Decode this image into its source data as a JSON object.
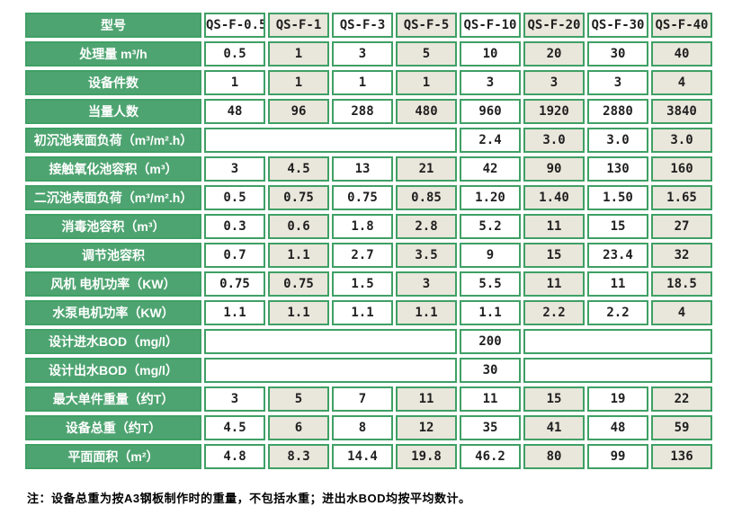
{
  "table": {
    "header": {
      "label": "型号",
      "models": [
        "QS-F-0.5",
        "QS-F-1",
        "QS-F-3",
        "QS-F-5",
        "QS-F-10",
        "QS-F-20",
        "QS-F-30",
        "QS-F-40"
      ]
    },
    "rows": [
      {
        "label": "处理量 m³/h",
        "cells": [
          "0.5",
          "1",
          "3",
          "5",
          "10",
          "20",
          "30",
          "40"
        ]
      },
      {
        "label": "设备件数",
        "cells": [
          "1",
          "1",
          "1",
          "1",
          "3",
          "3",
          "3",
          "4"
        ]
      },
      {
        "label": "当量人数",
        "cells": [
          "48",
          "96",
          "288",
          "480",
          "960",
          "1920",
          "2880",
          "3840"
        ]
      },
      {
        "label": "初沉池表面负荷（m³/m².h）",
        "cells": [
          {
            "text": "",
            "span": 4
          },
          {
            "text": "2.4"
          },
          {
            "text": "3.0"
          },
          {
            "text": "3.0"
          },
          {
            "text": "3.0"
          }
        ]
      },
      {
        "label": "接触氧化池容积（m³）",
        "cells": [
          "3",
          "4.5",
          "13",
          "21",
          "42",
          "90",
          "130",
          "160"
        ]
      },
      {
        "label": "二沉池表面负荷（m³/m².h）",
        "cells": [
          "0.5",
          "0.75",
          "0.75",
          "0.85",
          "1.20",
          "1.40",
          "1.50",
          "1.65"
        ]
      },
      {
        "label": "消毒池容积（m³）",
        "cells": [
          "0.3",
          "0.6",
          "1.8",
          "2.8",
          "5.2",
          "11",
          "15",
          "27"
        ]
      },
      {
        "label": "调节池容积",
        "cells": [
          "0.7",
          "1.1",
          "2.7",
          "3.5",
          "9",
          "15",
          "23.4",
          "32"
        ]
      },
      {
        "label": "风机 电机功率（KW）",
        "cells": [
          "0.75",
          "0.75",
          "1.5",
          "3",
          "5.5",
          "11",
          "11",
          "18.5"
        ]
      },
      {
        "label": "水泵电机功率（KW）",
        "cells": [
          "1.1",
          "1.1",
          "1.1",
          "1.1",
          "1.1",
          "2.2",
          "2.2",
          "4"
        ]
      },
      {
        "label": "设计进水BOD（mg/l）",
        "cells": [
          {
            "text": "",
            "span": 4
          },
          {
            "text": "200"
          },
          {
            "text": "",
            "span": 3
          }
        ]
      },
      {
        "label": "设计出水BOD（mg/l）",
        "cells": [
          {
            "text": "",
            "span": 4
          },
          {
            "text": "30"
          },
          {
            "text": "",
            "span": 3
          }
        ]
      },
      {
        "label": "最大单件重量（约T）",
        "cells": [
          "3",
          "5",
          "7",
          "11",
          "11",
          "15",
          "19",
          "22"
        ]
      },
      {
        "label": "设备总重（约T）",
        "cells": [
          "4.5",
          "6",
          "8",
          "12",
          "35",
          "41",
          "48",
          "59"
        ]
      },
      {
        "label": "平面面积（m²）",
        "cells": [
          "4.8",
          "8.3",
          "14.4",
          "19.8",
          "46.2",
          "80",
          "99",
          "136"
        ]
      }
    ]
  },
  "note": "注：设备总重为按A3钢板制作时的重量，不包括水重；进出水BOD均按平均数计。",
  "colors": {
    "green": "#4EA471",
    "border_green": "#3FA065",
    "beige": "#E9E6DB",
    "cell_white": "#FFFFFF",
    "value_text": "#1F1F1F",
    "label_text": "#FFFFFF"
  }
}
